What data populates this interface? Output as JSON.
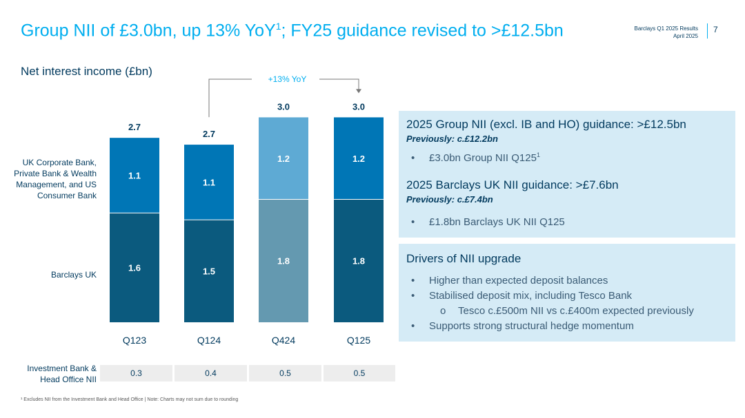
{
  "header": {
    "title": "Group NII of £3.0bn, up 13% YoY",
    "title_sup": "1",
    "title_rest": "; FY25 guidance revised to >£12.5bn",
    "doc_name": "Barclays Q1 2025 Results",
    "doc_date": "April 2025",
    "page_number": "7"
  },
  "colors": {
    "title_blue": "#00aeef",
    "navy": "#00395d",
    "uk_dark": "#0b5a7e",
    "corp_mid": "#0076b6",
    "q424_dark": "#6499b0",
    "q424_light": "#5eaad4",
    "panel_bg": "#d5ebf6"
  },
  "chart_data": {
    "type": "bar",
    "title": "Net interest income (£bn)",
    "categories": [
      "Q123",
      "Q124",
      "Q424",
      "Q125"
    ],
    "series": [
      {
        "name": "Barclays UK",
        "values": [
          1.6,
          1.5,
          1.8,
          1.8
        ]
      },
      {
        "name": "UK Corporate Bank, Private Bank & Wealth Management, and US Consumer Bank",
        "values": [
          1.1,
          1.1,
          1.2,
          1.2
        ]
      }
    ],
    "totals": [
      2.7,
      2.7,
      3.0,
      3.0
    ],
    "annotation": "+13% YoY",
    "ylim": [
      0,
      3.0
    ],
    "stacked": true,
    "investment_bank": {
      "label": "Investment Bank & Head Office NII",
      "values": [
        0.3,
        0.4,
        0.5,
        0.5
      ]
    }
  },
  "guidance": {
    "group_heading": "2025 Group NII (excl. IB and HO) guidance: >£12.5bn",
    "group_previous": "Previously: c.£12.2bn",
    "group_bullet": "£3.0bn Group NII Q125",
    "group_bullet_sup": "1",
    "uk_heading": "2025 Barclays UK NII guidance: >£7.6bn",
    "uk_previous": "Previously: c.£7.4bn",
    "uk_bullet": "£1.8bn Barclays UK NII Q125"
  },
  "drivers": {
    "heading": "Drivers of NII upgrade",
    "bullets": [
      "Higher than expected deposit balances",
      "Stabilised deposit mix, including Tesco Bank",
      "Tesco c.£500m NII vs c.£400m expected previously",
      "Supports strong structural hedge momentum"
    ],
    "bullet_marker": "•",
    "sub_marker": "o"
  },
  "footnote": "¹ Excludes NII from the Investment Bank and Head Office | Note: Charts may not sum due to rounding"
}
